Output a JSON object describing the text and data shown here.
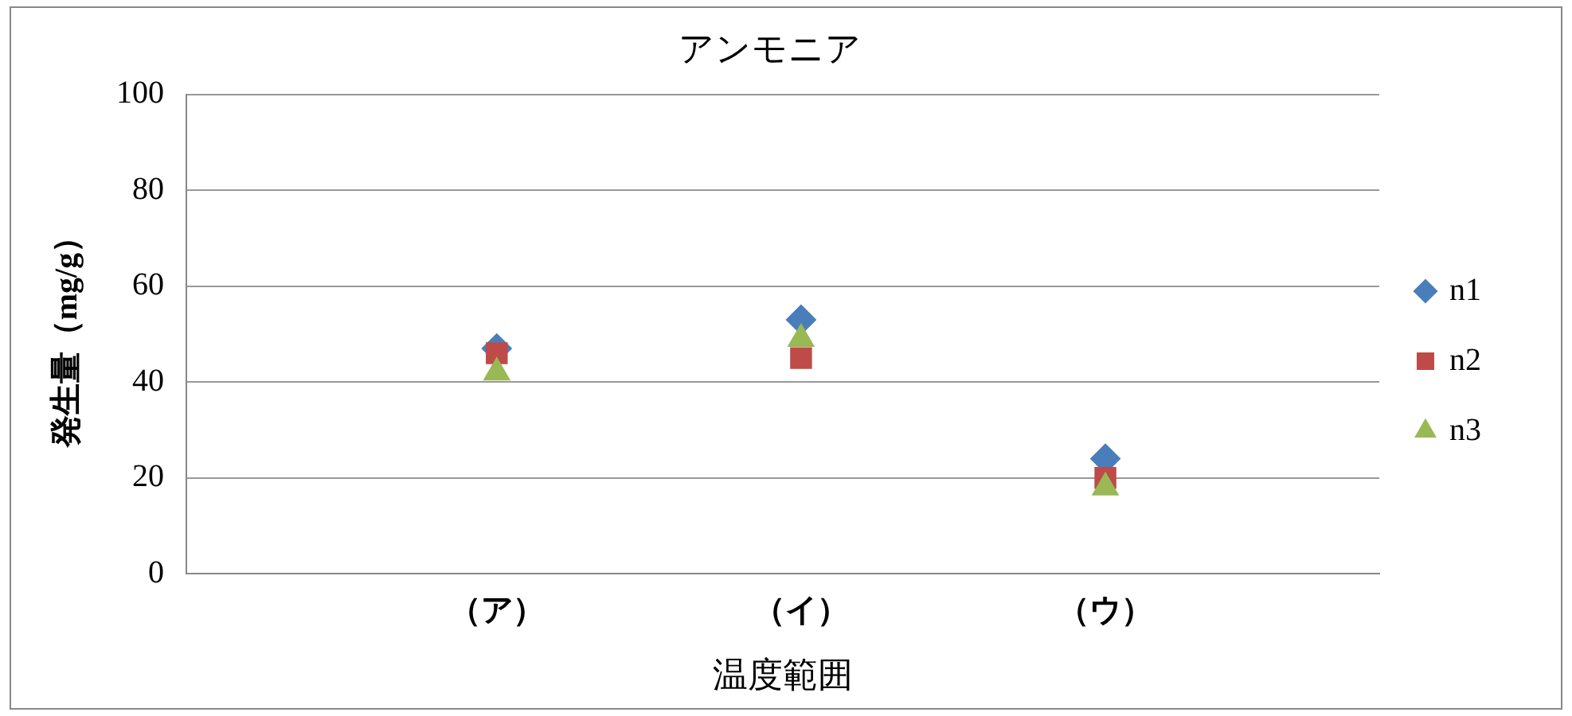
{
  "chart_data": {
    "type": "scatter",
    "title": "アンモニア",
    "xlabel": "温度範囲",
    "ylabel": "発生量（mg/g）",
    "categories": [
      "（ア）",
      "（イ）",
      "（ウ）"
    ],
    "series": [
      {
        "name": "n1",
        "color": "#4a7ebb",
        "marker": "diamond",
        "values": [
          47,
          53,
          24
        ]
      },
      {
        "name": "n2",
        "color": "#be4b48",
        "marker": "square",
        "values": [
          46,
          45,
          20
        ]
      },
      {
        "name": "n3",
        "color": "#98b954",
        "marker": "triangle",
        "values": [
          42,
          49,
          18
        ]
      }
    ],
    "ylim": [
      0,
      100
    ],
    "yticks": [
      0,
      20,
      40,
      60,
      80,
      100
    ],
    "grid": "y",
    "legend": "right"
  }
}
